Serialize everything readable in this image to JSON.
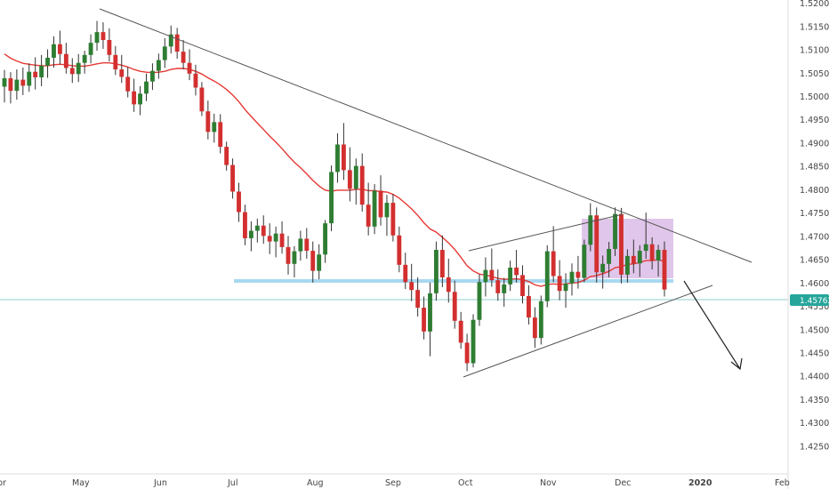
{
  "chart_data": {
    "type": "candlestick",
    "title": "",
    "xlabel": "",
    "ylabel": "",
    "ylim": [
      1.4225,
      1.5203
    ],
    "x_ticks": [
      "pr",
      "May",
      "Jun",
      "Jul",
      "Aug",
      "Sep",
      "Oct",
      "Nov",
      "Dec",
      "2020",
      "Feb"
    ],
    "y_ticks": [
      "1.52000",
      "1.51500",
      "1.51000",
      "1.50500",
      "1.50000",
      "1.49500",
      "1.49000",
      "1.48500",
      "1.48000",
      "1.47500",
      "1.47000",
      "1.46500",
      "1.46000",
      "1.45500",
      "1.45000",
      "1.44500",
      "1.44000",
      "1.43500",
      "1.43000",
      "1.42500"
    ],
    "current_price": "1.45762",
    "colors": {
      "up": "#2e7d32",
      "down": "#d32f2f",
      "moving_average": "#e53935",
      "trendline": "#555555",
      "support_zone": "#a8d8f0",
      "consolidation_box": "#c9a0dc",
      "price_tag": "#26a69a"
    },
    "series": [
      {
        "kind": "candles",
        "ohlc": [
          [
            1.5021,
            1.5057,
            1.4987,
            1.5039
          ],
          [
            1.5039,
            1.5052,
            1.4985,
            1.5012
          ],
          [
            1.5012,
            1.5058,
            1.4993,
            1.5036
          ],
          [
            1.5036,
            1.5062,
            1.5003,
            1.5023
          ],
          [
            1.5023,
            1.5071,
            1.501,
            1.5053
          ],
          [
            1.5053,
            1.5084,
            1.5015,
            1.5041
          ],
          [
            1.5041,
            1.5089,
            1.5022,
            1.5066
          ],
          [
            1.5066,
            1.5101,
            1.504,
            1.5083
          ],
          [
            1.5083,
            1.5129,
            1.5062,
            1.5112
          ],
          [
            1.5112,
            1.5141,
            1.5069,
            1.5091
          ],
          [
            1.5091,
            1.5115,
            1.5049,
            1.5061
          ],
          [
            1.5061,
            1.5082,
            1.5029,
            1.5048
          ],
          [
            1.5048,
            1.5091,
            1.5031,
            1.5072
          ],
          [
            1.5072,
            1.5098,
            1.5049,
            1.5089
          ],
          [
            1.5089,
            1.5133,
            1.5071,
            1.5115
          ],
          [
            1.5115,
            1.5162,
            1.5098,
            1.5138
          ],
          [
            1.5138,
            1.5159,
            1.5102,
            1.5121
          ],
          [
            1.5121,
            1.5146,
            1.5075,
            1.5089
          ],
          [
            1.5089,
            1.5108,
            1.5046,
            1.5058
          ],
          [
            1.5058,
            1.5089,
            1.5029,
            1.5042
          ],
          [
            1.5042,
            1.5063,
            1.4998,
            1.5011
          ],
          [
            1.5011,
            1.5038,
            1.4967,
            1.4983
          ],
          [
            1.4983,
            1.5022,
            1.496,
            1.5006
          ],
          [
            1.5006,
            1.5049,
            1.499,
            1.5032
          ],
          [
            1.5032,
            1.5071,
            1.5014,
            1.5055
          ],
          [
            1.5055,
            1.5092,
            1.5038,
            1.5078
          ],
          [
            1.5078,
            1.5125,
            1.5061,
            1.5107
          ],
          [
            1.5107,
            1.5152,
            1.5092,
            1.5133
          ],
          [
            1.5133,
            1.5147,
            1.5081,
            1.5096
          ],
          [
            1.5096,
            1.5121,
            1.5058,
            1.5072
          ],
          [
            1.5072,
            1.5101,
            1.5035,
            1.5049
          ],
          [
            1.5049,
            1.5068,
            1.5002,
            1.5019
          ],
          [
            1.5019,
            1.5031,
            1.4958,
            1.4968
          ],
          [
            1.4968,
            1.4991,
            1.4908,
            1.4924
          ],
          [
            1.4924,
            1.4963,
            1.4901,
            1.4945
          ],
          [
            1.4945,
            1.4962,
            1.4878,
            1.4892
          ],
          [
            1.4892,
            1.4903,
            1.4841,
            1.4853
          ],
          [
            1.4853,
            1.4867,
            1.4781,
            1.4796
          ],
          [
            1.4796,
            1.4815,
            1.4731,
            1.4752
          ],
          [
            1.4752,
            1.4768,
            1.4681,
            1.4696
          ],
          [
            1.4696,
            1.4732,
            1.4668,
            1.4712
          ],
          [
            1.4712,
            1.4738,
            1.4687,
            1.4723
          ],
          [
            1.4723,
            1.4745,
            1.4684,
            1.4701
          ],
          [
            1.4701,
            1.4728,
            1.4662,
            1.4689
          ],
          [
            1.4689,
            1.4721,
            1.4655,
            1.4706
          ],
          [
            1.4706,
            1.4732,
            1.4663,
            1.4677
          ],
          [
            1.4677,
            1.4701,
            1.4618,
            1.4641
          ],
          [
            1.4641,
            1.4679,
            1.4612,
            1.4668
          ],
          [
            1.4668,
            1.4712,
            1.4648,
            1.4695
          ],
          [
            1.4695,
            1.4718,
            1.4652,
            1.4669
          ],
          [
            1.4669,
            1.4689,
            1.4601,
            1.4626
          ],
          [
            1.4626,
            1.4683,
            1.4608,
            1.4661
          ],
          [
            1.4661,
            1.4735,
            1.4643,
            1.4728
          ],
          [
            1.4728,
            1.4852,
            1.4711,
            1.4838
          ],
          [
            1.4838,
            1.4921,
            1.4815,
            1.4897
          ],
          [
            1.4897,
            1.4943,
            1.4821,
            1.4842
          ],
          [
            1.4842,
            1.4891,
            1.4775,
            1.4802
          ],
          [
            1.4802,
            1.4867,
            1.4768,
            1.4851
          ],
          [
            1.4851,
            1.4878,
            1.4753,
            1.4768
          ],
          [
            1.4768,
            1.4815,
            1.4702,
            1.4721
          ],
          [
            1.4721,
            1.4812,
            1.4705,
            1.4798
          ],
          [
            1.4798,
            1.4831,
            1.4723,
            1.4741
          ],
          [
            1.4741,
            1.4789,
            1.4701,
            1.4772
          ],
          [
            1.4772,
            1.4791,
            1.4689,
            1.4702
          ],
          [
            1.4702,
            1.4721,
            1.4623,
            1.4639
          ],
          [
            1.4639,
            1.4665,
            1.4587,
            1.4602
          ],
          [
            1.4602,
            1.4641,
            1.4561,
            1.4585
          ],
          [
            1.4585,
            1.4612,
            1.4528,
            1.4547
          ],
          [
            1.4547,
            1.4571,
            1.4479,
            1.4496
          ],
          [
            1.4496,
            1.4601,
            1.4443,
            1.4578
          ],
          [
            1.4578,
            1.4689,
            1.4562,
            1.4671
          ],
          [
            1.4671,
            1.4702,
            1.4591,
            1.4612
          ],
          [
            1.4612,
            1.4652,
            1.4558,
            1.4581
          ],
          [
            1.4581,
            1.4605,
            1.4502,
            1.4519
          ],
          [
            1.4519,
            1.4538,
            1.4459,
            1.4472
          ],
          [
            1.4472,
            1.4491,
            1.4411,
            1.4428
          ],
          [
            1.4428,
            1.4533,
            1.4419,
            1.4521
          ],
          [
            1.4521,
            1.4618,
            1.4508,
            1.4602
          ],
          [
            1.4602,
            1.4655,
            1.4571,
            1.4628
          ],
          [
            1.4628,
            1.4674,
            1.4592,
            1.4606
          ],
          [
            1.4606,
            1.4629,
            1.4562,
            1.4578
          ],
          [
            1.4578,
            1.4611,
            1.4549,
            1.4597
          ],
          [
            1.4597,
            1.4648,
            1.4583,
            1.4633
          ],
          [
            1.4633,
            1.4671,
            1.4601,
            1.4617
          ],
          [
            1.4617,
            1.4638,
            1.4556,
            1.4572
          ],
          [
            1.4572,
            1.4595,
            1.4511,
            1.4526
          ],
          [
            1.4526,
            1.4548,
            1.4461,
            1.4482
          ],
          [
            1.4482,
            1.4573,
            1.4468,
            1.4561
          ],
          [
            1.4561,
            1.4681,
            1.4548,
            1.4668
          ],
          [
            1.4668,
            1.4722,
            1.4602,
            1.4615
          ],
          [
            1.4615,
            1.4649,
            1.4563,
            1.4583
          ],
          [
            1.4583,
            1.4621,
            1.4547,
            1.4599
          ],
          [
            1.4599,
            1.4642,
            1.4573,
            1.4624
          ],
          [
            1.4624,
            1.4658,
            1.4588,
            1.4611
          ],
          [
            1.4611,
            1.4693,
            1.4602,
            1.4682
          ],
          [
            1.4682,
            1.4771,
            1.4668,
            1.4745
          ],
          [
            1.4745,
            1.4762,
            1.4601,
            1.4623
          ],
          [
            1.4623,
            1.4659,
            1.4588,
            1.4641
          ],
          [
            1.4641,
            1.4688,
            1.4612,
            1.4673
          ],
          [
            1.4673,
            1.4762,
            1.4658,
            1.4748
          ],
          [
            1.4748,
            1.4761,
            1.4599,
            1.4618
          ],
          [
            1.4618,
            1.4672,
            1.4601,
            1.4658
          ],
          [
            1.4658,
            1.4693,
            1.4621,
            1.4642
          ],
          [
            1.4642,
            1.4681,
            1.4613,
            1.4669
          ],
          [
            1.4669,
            1.4751,
            1.4652,
            1.4683
          ],
          [
            1.4683,
            1.4698,
            1.4629,
            1.4648
          ],
          [
            1.4648,
            1.4682,
            1.4614,
            1.4671
          ],
          [
            1.4671,
            1.4689,
            1.4571,
            1.4586
          ]
        ]
      },
      {
        "kind": "moving_average",
        "values": [
          1.5091,
          1.5082,
          1.5076,
          1.5071,
          1.5069,
          1.5067,
          1.5066,
          1.5066,
          1.5068,
          1.5069,
          1.5068,
          1.5066,
          1.5065,
          1.5065,
          1.5067,
          1.507,
          1.5072,
          1.5072,
          1.507,
          1.5067,
          1.5063,
          1.5058,
          1.5054,
          1.5052,
          1.5051,
          1.5052,
          1.5054,
          1.5058,
          1.506,
          1.506,
          1.5058,
          1.5054,
          1.5048,
          1.504,
          1.5033,
          1.5025,
          1.5015,
          1.5003,
          1.4989,
          1.4972,
          1.4957,
          1.4943,
          1.4929,
          1.4915,
          1.4902,
          1.4888,
          1.4873,
          1.4859,
          1.4847,
          1.4834,
          1.482,
          1.4808,
          1.4799,
          1.4797,
          1.4799,
          1.4799,
          1.4799,
          1.4801,
          1.4801,
          1.4798,
          1.4798,
          1.4796,
          1.4795,
          1.479,
          1.4782,
          1.4771,
          1.4759,
          1.4745,
          1.4729,
          1.4716,
          1.4709,
          1.4698,
          1.4686,
          1.4672,
          1.4655,
          1.4637,
          1.4626,
          1.4619,
          1.4617,
          1.4614,
          1.461,
          1.4608,
          1.4608,
          1.4609,
          1.4607,
          1.4603,
          1.4596,
          1.4593,
          1.4597,
          1.4598,
          1.4597,
          1.4598,
          1.46,
          1.4601,
          1.4606,
          1.4614,
          1.4616,
          1.462,
          1.4625,
          1.4633,
          1.4635,
          1.464,
          1.4641,
          1.4644,
          1.4648,
          1.4648,
          1.465,
          1.4646
        ]
      }
    ]
  }
}
